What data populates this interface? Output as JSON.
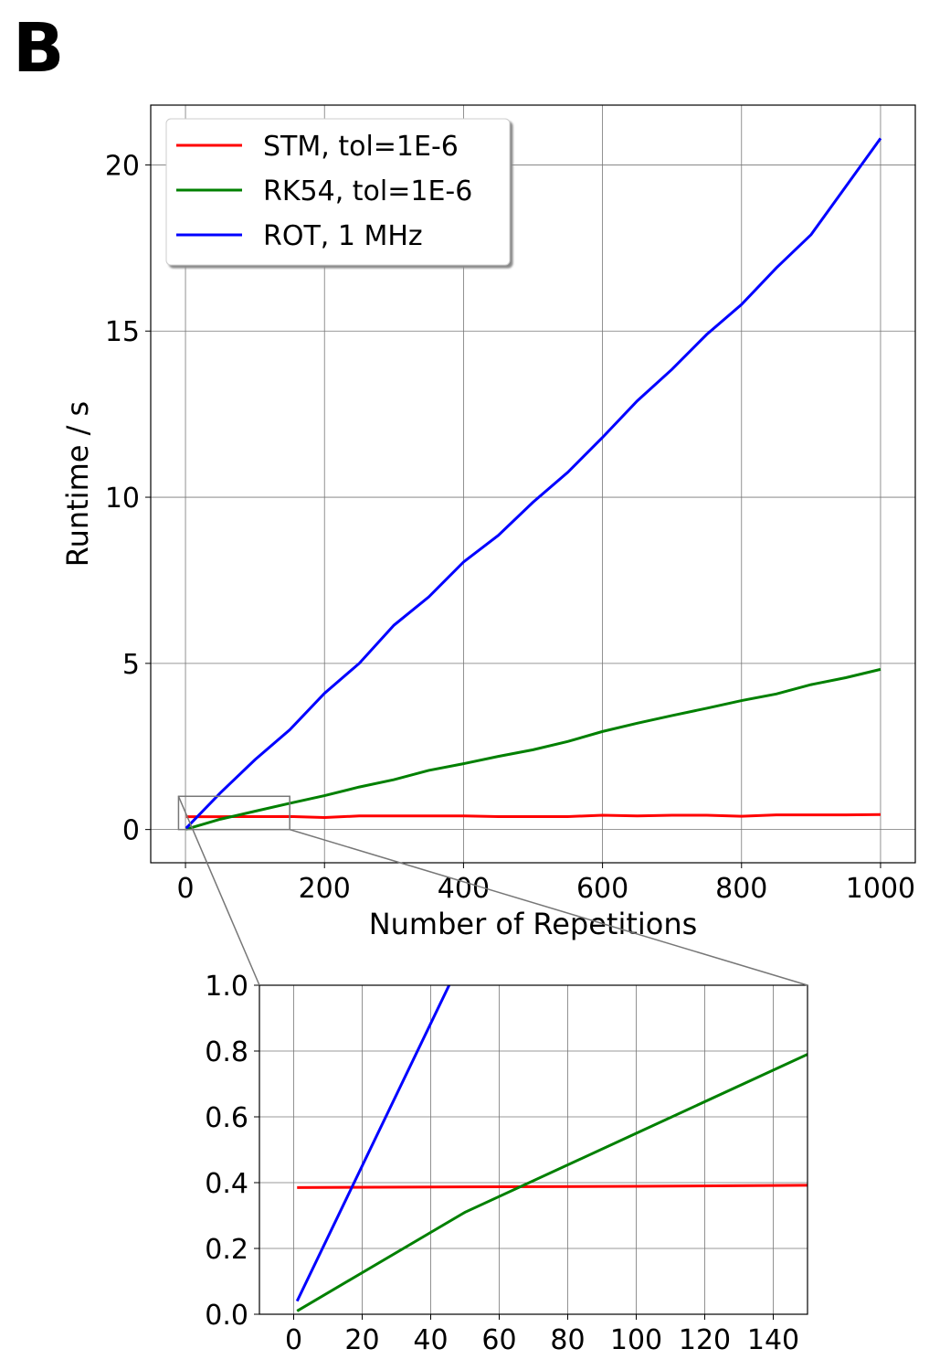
{
  "panel_label": "B",
  "chart_data": [
    {
      "type": "line",
      "xlabel": "Number of Repetitions",
      "ylabel": "Runtime / s",
      "x": [
        1,
        50,
        100,
        150,
        200,
        250,
        300,
        350,
        400,
        450,
        500,
        550,
        600,
        650,
        700,
        750,
        800,
        850,
        900,
        950,
        1000
      ],
      "series": [
        {
          "name": "STM, tol=1E-6",
          "color": "#ff0000",
          "values": [
            0.385,
            0.387,
            0.389,
            0.392,
            0.36,
            0.41,
            0.41,
            0.41,
            0.41,
            0.39,
            0.39,
            0.39,
            0.43,
            0.41,
            0.43,
            0.43,
            0.4,
            0.44,
            0.44,
            0.44,
            0.45
          ]
        },
        {
          "name": "RK54, tol=1E-6",
          "color": "#008000",
          "values": [
            0.01,
            0.31,
            0.55,
            0.79,
            1.02,
            1.28,
            1.5,
            1.78,
            1.98,
            2.2,
            2.4,
            2.65,
            2.95,
            3.2,
            3.43,
            3.65,
            3.88,
            4.08,
            4.36,
            4.57,
            4.82
          ]
        },
        {
          "name": "ROT, 1 MHz",
          "color": "#0000ff",
          "values": [
            0.04,
            1.1,
            2.1,
            3.0,
            4.1,
            5.0,
            6.15,
            7.0,
            8.05,
            8.85,
            9.85,
            10.75,
            11.8,
            12.9,
            13.85,
            14.9,
            15.8,
            16.9,
            17.9,
            19.35,
            20.8
          ]
        }
      ],
      "xlim": [
        -50,
        1050
      ],
      "ylim": [
        -1,
        21.8
      ],
      "xticks": [
        0,
        200,
        400,
        600,
        800,
        1000
      ],
      "yticks": [
        0,
        5,
        10,
        15,
        20
      ],
      "grid": true,
      "legend": "upper-left"
    },
    {
      "type": "inset",
      "xlim": [
        -10,
        150
      ],
      "ylim": [
        0,
        1
      ],
      "xticks": [
        0,
        20,
        40,
        60,
        80,
        100,
        120,
        140
      ],
      "yticks": [
        {
          "value": 0,
          "label": "0.0"
        },
        0.2,
        0.4,
        0.6,
        0.8,
        {
          "value": 1,
          "label": "1.0"
        }
      ],
      "grid": true
    }
  ]
}
